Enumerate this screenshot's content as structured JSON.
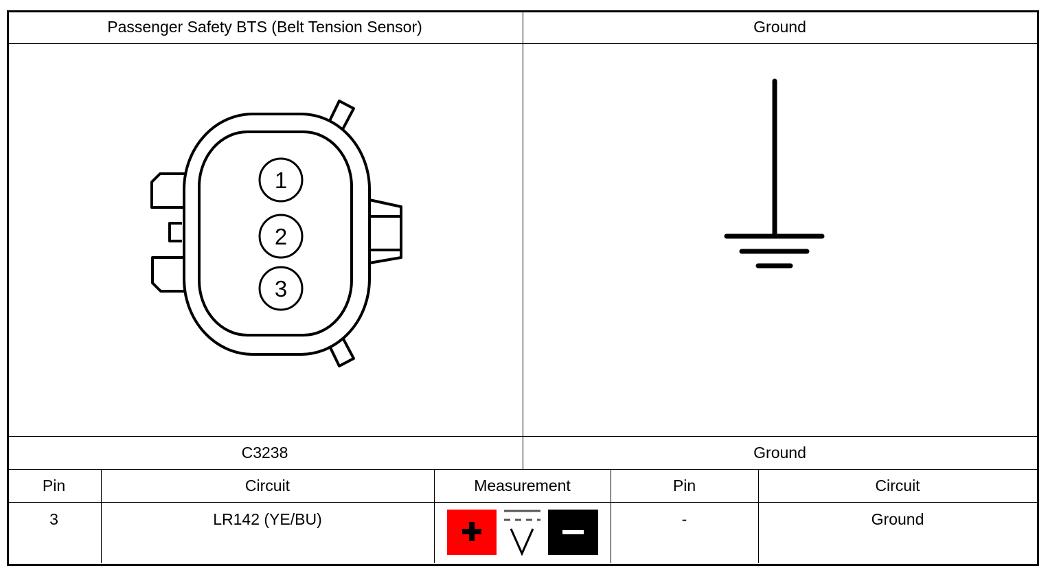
{
  "header": {
    "left_title": "Passenger Safety BTS (Belt Tension Sensor)",
    "right_title": "Ground"
  },
  "connector": {
    "pins": [
      "1",
      "2",
      "3"
    ]
  },
  "labels": {
    "left": "C3238",
    "right": "Ground"
  },
  "table": {
    "headers": [
      "Pin",
      "Circuit",
      "Measurement",
      "Pin",
      "Circuit"
    ],
    "rows": [
      {
        "pin": "3",
        "circuit": "LR142 (YE/BU)",
        "measurement_icons": [
          "positive-probe-icon",
          "dc-voltage-icon",
          "negative-probe-icon"
        ],
        "pin2": "-",
        "circuit2": "Ground"
      }
    ]
  },
  "colors": {
    "positive": "#ff0000",
    "negative": "#000000"
  }
}
